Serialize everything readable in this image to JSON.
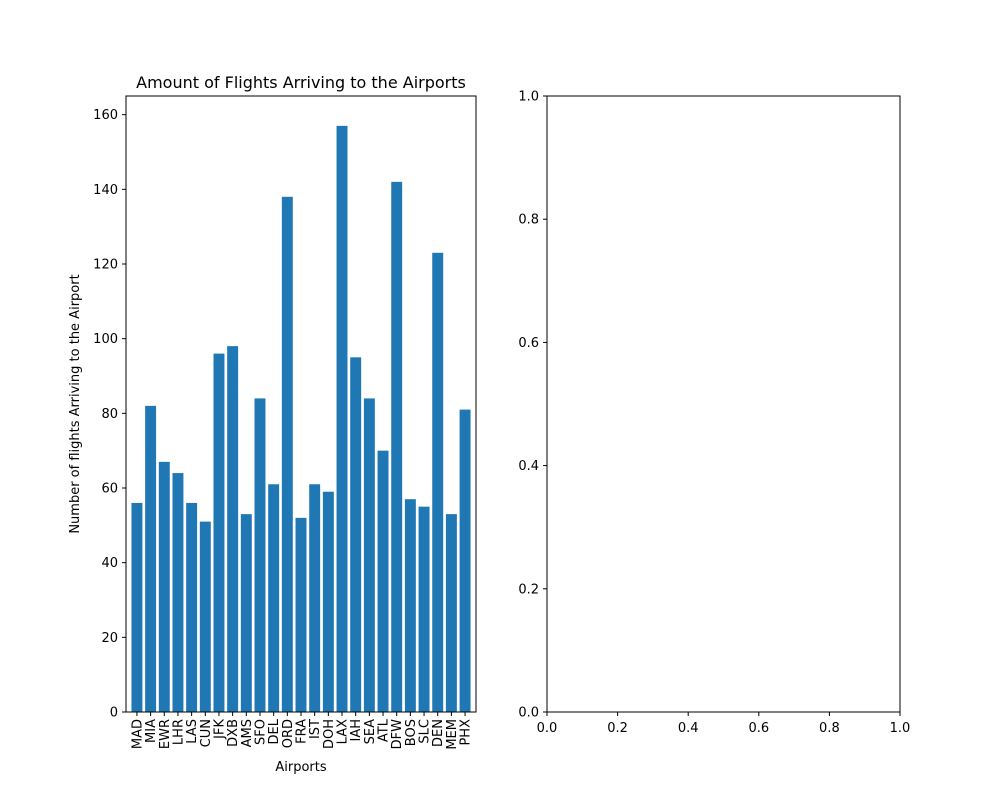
{
  "chart_data": [
    {
      "type": "bar",
      "title": "Amount of Flights Arriving to the Airports",
      "xlabel": "Airports",
      "ylabel": "Number of flights Arriving to the Airport",
      "categories": [
        "MAD",
        "MIA",
        "EWR",
        "LHR",
        "LAS",
        "CUN",
        "JFK",
        "DXB",
        "AMS",
        "SFO",
        "DEL",
        "ORD",
        "FRA",
        "IST",
        "DOH",
        "LAX",
        "IAH",
        "SEA",
        "ATL",
        "DFW",
        "BOS",
        "SLC",
        "DEN",
        "MEM",
        "PHX"
      ],
      "values": [
        56,
        82,
        67,
        64,
        56,
        51,
        96,
        98,
        53,
        84,
        61,
        138,
        52,
        61,
        59,
        157,
        95,
        84,
        70,
        142,
        57,
        55,
        123,
        53,
        81
      ],
      "ylim": [
        0,
        165
      ],
      "yticks": [
        "0",
        "20",
        "40",
        "60",
        "80",
        "100",
        "120",
        "140",
        "160"
      ],
      "bar_color": "#1f77b4",
      "grid": false
    },
    {
      "type": "empty",
      "xlim": [
        0,
        1
      ],
      "ylim": [
        0,
        1
      ],
      "xticks": [
        "0.0",
        "0.2",
        "0.4",
        "0.6",
        "0.8",
        "1.0"
      ],
      "yticks": [
        "0.0",
        "0.2",
        "0.4",
        "0.6",
        "0.8",
        "1.0"
      ],
      "grid": false
    }
  ]
}
